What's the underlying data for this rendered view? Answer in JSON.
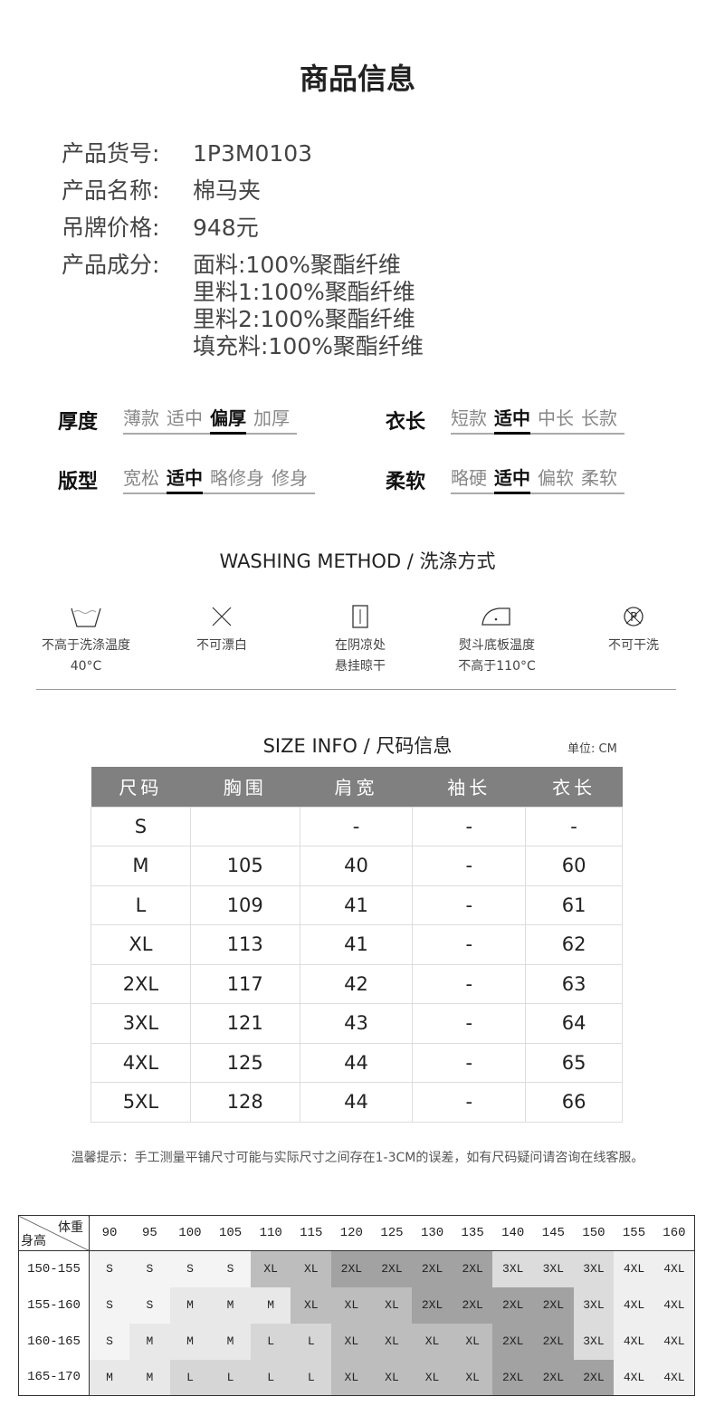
{
  "title": "商品信息",
  "info": [
    {
      "k": "产品货号:",
      "v": "1P3M0103"
    },
    {
      "k": "产品名称:",
      "v": "棉马夹"
    },
    {
      "k": "吊牌价格:",
      "v": "948元"
    },
    {
      "k": "产品成分:",
      "v": "面料:100%聚酯纤维"
    }
  ],
  "composition_more": [
    "里料1:100%聚酯纤维",
    "里料2:100%聚酯纤维",
    "填充料:100%聚酯纤维"
  ],
  "attributes": [
    {
      "label": "厚度",
      "options": [
        "薄款",
        "适中",
        "偏厚",
        "加厚"
      ],
      "selected": 2
    },
    {
      "label": "衣长",
      "options": [
        "短款",
        "适中",
        "中长",
        "长款"
      ],
      "selected": 1
    },
    {
      "label": "版型",
      "options": [
        "宽松",
        "适中",
        "略修身",
        "修身"
      ],
      "selected": 1
    },
    {
      "label": "柔软",
      "options": [
        "略硬",
        "适中",
        "偏软",
        "柔软"
      ],
      "selected": 1
    }
  ],
  "washing": {
    "title": "WASHING METHOD / 洗涤方式",
    "items": [
      {
        "icon": "wash-tub-icon",
        "lines": [
          "不高于洗涤温度",
          "40°C"
        ]
      },
      {
        "icon": "no-bleach-icon",
        "lines": [
          "不可漂白"
        ]
      },
      {
        "icon": "hang-dry-shade-icon",
        "lines": [
          "在阴凉处",
          "悬挂晾干"
        ]
      },
      {
        "icon": "iron-icon",
        "lines": [
          "熨斗底板温度",
          "不高于110°C"
        ]
      },
      {
        "icon": "no-dry-clean-icon",
        "lines": [
          "不可干洗"
        ]
      }
    ]
  },
  "size_info": {
    "title": "SIZE INFO / 尺码信息",
    "unit": "单位: CM",
    "headers": [
      "尺码",
      "胸围",
      "肩宽",
      "袖长",
      "衣长"
    ],
    "rows": [
      [
        "S",
        "",
        "-",
        "-",
        "-"
      ],
      [
        "M",
        "105",
        "40",
        "-",
        "60"
      ],
      [
        "L",
        "109",
        "41",
        "-",
        "61"
      ],
      [
        "XL",
        "113",
        "41",
        "-",
        "62"
      ],
      [
        "2XL",
        "117",
        "42",
        "-",
        "63"
      ],
      [
        "3XL",
        "121",
        "43",
        "-",
        "64"
      ],
      [
        "4XL",
        "125",
        "44",
        "-",
        "65"
      ],
      [
        "5XL",
        "128",
        "44",
        "-",
        "66"
      ]
    ]
  },
  "note": "温馨提示：手工测量平铺尺寸可能与实际尺寸之间存在1-3CM的误差，如有尺码疑问请咨询在线客服。",
  "recommend": {
    "corner_top": "体重",
    "corner_bottom": "身高",
    "weights": [
      "90",
      "95",
      "100",
      "105",
      "110",
      "115",
      "120",
      "125",
      "130",
      "135",
      "140",
      "145",
      "150",
      "155",
      "160"
    ],
    "rows": [
      {
        "h": "150-155",
        "s": [
          "S",
          "S",
          "S",
          "S",
          "XL",
          "XL",
          "2XL",
          "2XL",
          "2XL",
          "2XL",
          "3XL",
          "3XL",
          "3XL",
          "4XL",
          "4XL"
        ]
      },
      {
        "h": "155-160",
        "s": [
          "S",
          "S",
          "M",
          "M",
          "M",
          "XL",
          "XL",
          "XL",
          "2XL",
          "2XL",
          "2XL",
          "2XL",
          "3XL",
          "4XL",
          "4XL"
        ]
      },
      {
        "h": "160-165",
        "s": [
          "S",
          "M",
          "M",
          "M",
          "L",
          "L",
          "XL",
          "XL",
          "XL",
          "XL",
          "2XL",
          "2XL",
          "3XL",
          "4XL",
          "4XL"
        ]
      },
      {
        "h": "165-170",
        "s": [
          "M",
          "M",
          "L",
          "L",
          "L",
          "L",
          "XL",
          "XL",
          "XL",
          "XL",
          "2XL",
          "2XL",
          "2XL",
          "4XL",
          "4XL"
        ]
      }
    ],
    "shades": {
      "S": "#f4f4f4",
      "M": "#e8e8e8",
      "L": "#d6d6d6",
      "XL": "#bdbdbd",
      "2XL": "#a2a2a2",
      "3XL": "#dcdcdc",
      "4XL": "#efefef"
    }
  }
}
